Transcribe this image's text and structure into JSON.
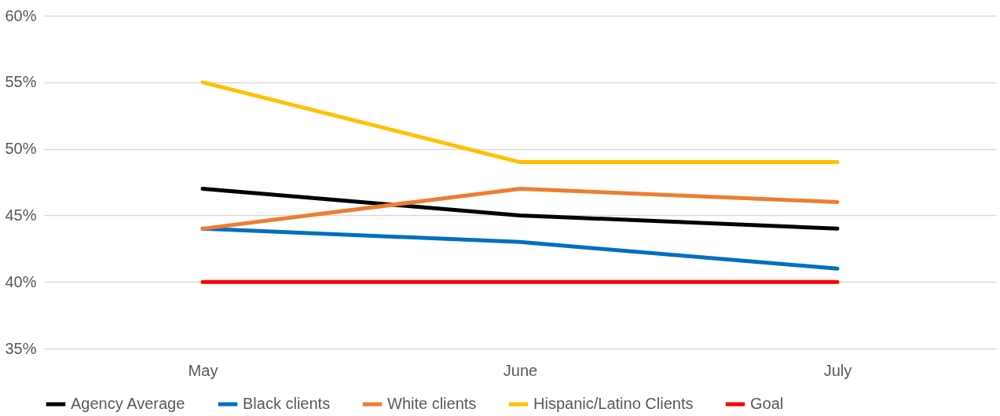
{
  "chart_data": {
    "type": "line",
    "categories": [
      "May",
      "June",
      "July"
    ],
    "series": [
      {
        "name": "Agency Average",
        "color": "#000000",
        "values": [
          47,
          45,
          44
        ]
      },
      {
        "name": "Black clients",
        "color": "#0070c0",
        "values": [
          44,
          43,
          41
        ]
      },
      {
        "name": "White clients",
        "color": "#ed7d31",
        "values": [
          44,
          47,
          46
        ]
      },
      {
        "name": "Hispanic/Latino Clients",
        "color": "#ffc000",
        "values": [
          55,
          49,
          49
        ]
      },
      {
        "name": "Goal",
        "color": "#ff0000",
        "values": [
          40,
          40,
          40
        ]
      }
    ],
    "ylim": [
      35,
      60
    ],
    "yticks": [
      {
        "value": 35,
        "label": "35%"
      },
      {
        "value": 40,
        "label": "40%"
      },
      {
        "value": 45,
        "label": "45%"
      },
      {
        "value": 50,
        "label": "50%"
      },
      {
        "value": 55,
        "label": "55%"
      },
      {
        "value": 60,
        "label": "60%"
      }
    ],
    "grid": "y",
    "legend": "bottom",
    "line_style": "solid",
    "marker": "none"
  }
}
